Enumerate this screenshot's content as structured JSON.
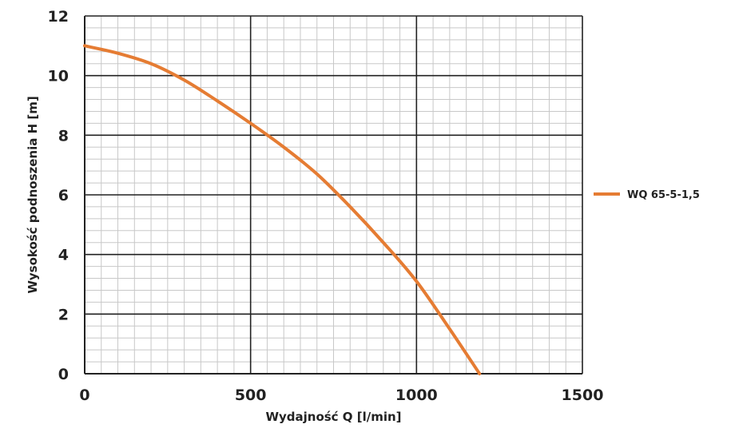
{
  "chart_data": {
    "type": "line",
    "title": "",
    "xlabel": "Wydajność Q [l/min]",
    "ylabel": "Wysokość podnoszenia H [m]",
    "xlim": [
      0,
      1500
    ],
    "ylim": [
      0,
      12
    ],
    "x_ticks": [
      "0",
      "500",
      "1000",
      "1500"
    ],
    "y_ticks": [
      "0",
      "2",
      "4",
      "6",
      "8",
      "10",
      "12"
    ],
    "grid": true,
    "legend_position": "right",
    "series": [
      {
        "name": "WQ 65-5-1,5",
        "color": "#e57c33",
        "x": [
          0,
          100,
          200,
          300,
          400,
          500,
          600,
          700,
          800,
          900,
          1000,
          1100,
          1190
        ],
        "y": [
          11.0,
          10.75,
          10.4,
          9.85,
          9.15,
          8.4,
          7.6,
          6.7,
          5.6,
          4.4,
          3.1,
          1.5,
          0.0
        ]
      }
    ]
  }
}
